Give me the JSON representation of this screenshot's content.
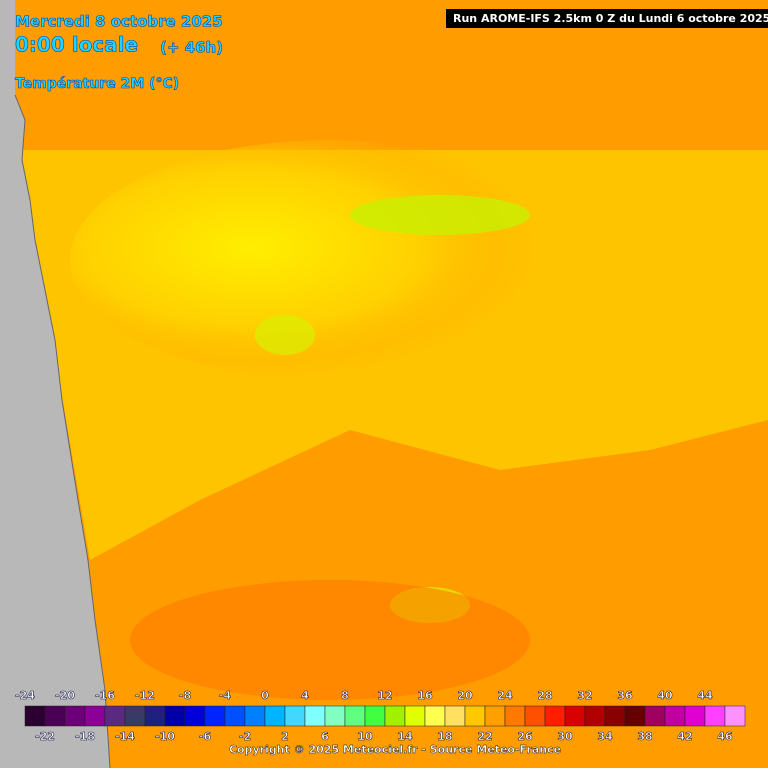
{
  "header": {
    "date": "Mercredi 8 octobre 2025",
    "time": "0:00 locale",
    "lead": "(+ 46h)",
    "variable": "Température 2M (°C)"
  },
  "run": "Run AROME-IFS 2.5km 0 Z du Lundi 6 octobre 2025",
  "colorbar": {
    "upper_labels": [
      -24,
      -20,
      -16,
      -12,
      -8,
      -4,
      0,
      4,
      8,
      12,
      16,
      20,
      24,
      28,
      32,
      36,
      40,
      44
    ],
    "lower_labels": [
      -22,
      -18,
      -14,
      -10,
      -6,
      -2,
      2,
      6,
      10,
      14,
      18,
      22,
      26,
      30,
      34,
      38,
      42,
      46
    ],
    "colors": [
      "#2b0030",
      "#4a0055",
      "#6c0078",
      "#8c0098",
      "#5a2a80",
      "#3a3a66",
      "#202080",
      "#0000a8",
      "#0000d8",
      "#0024ff",
      "#0050ff",
      "#0080ff",
      "#00b4ff",
      "#40d8ff",
      "#80ffff",
      "#80ffc0",
      "#60ff80",
      "#40ff40",
      "#a0f000",
      "#e0ff00",
      "#ffff50",
      "#ffe060",
      "#ffc800",
      "#ffa000",
      "#ff7800",
      "#ff5000",
      "#ff1e00",
      "#d80000",
      "#b00000",
      "#880000",
      "#660000",
      "#a00060",
      "#c000a0",
      "#e000d0",
      "#ff40ff",
      "#ff90ff"
    ]
  },
  "copyright": "Copyright © 2025 Meteociel.fr - Source Meteo-France"
}
